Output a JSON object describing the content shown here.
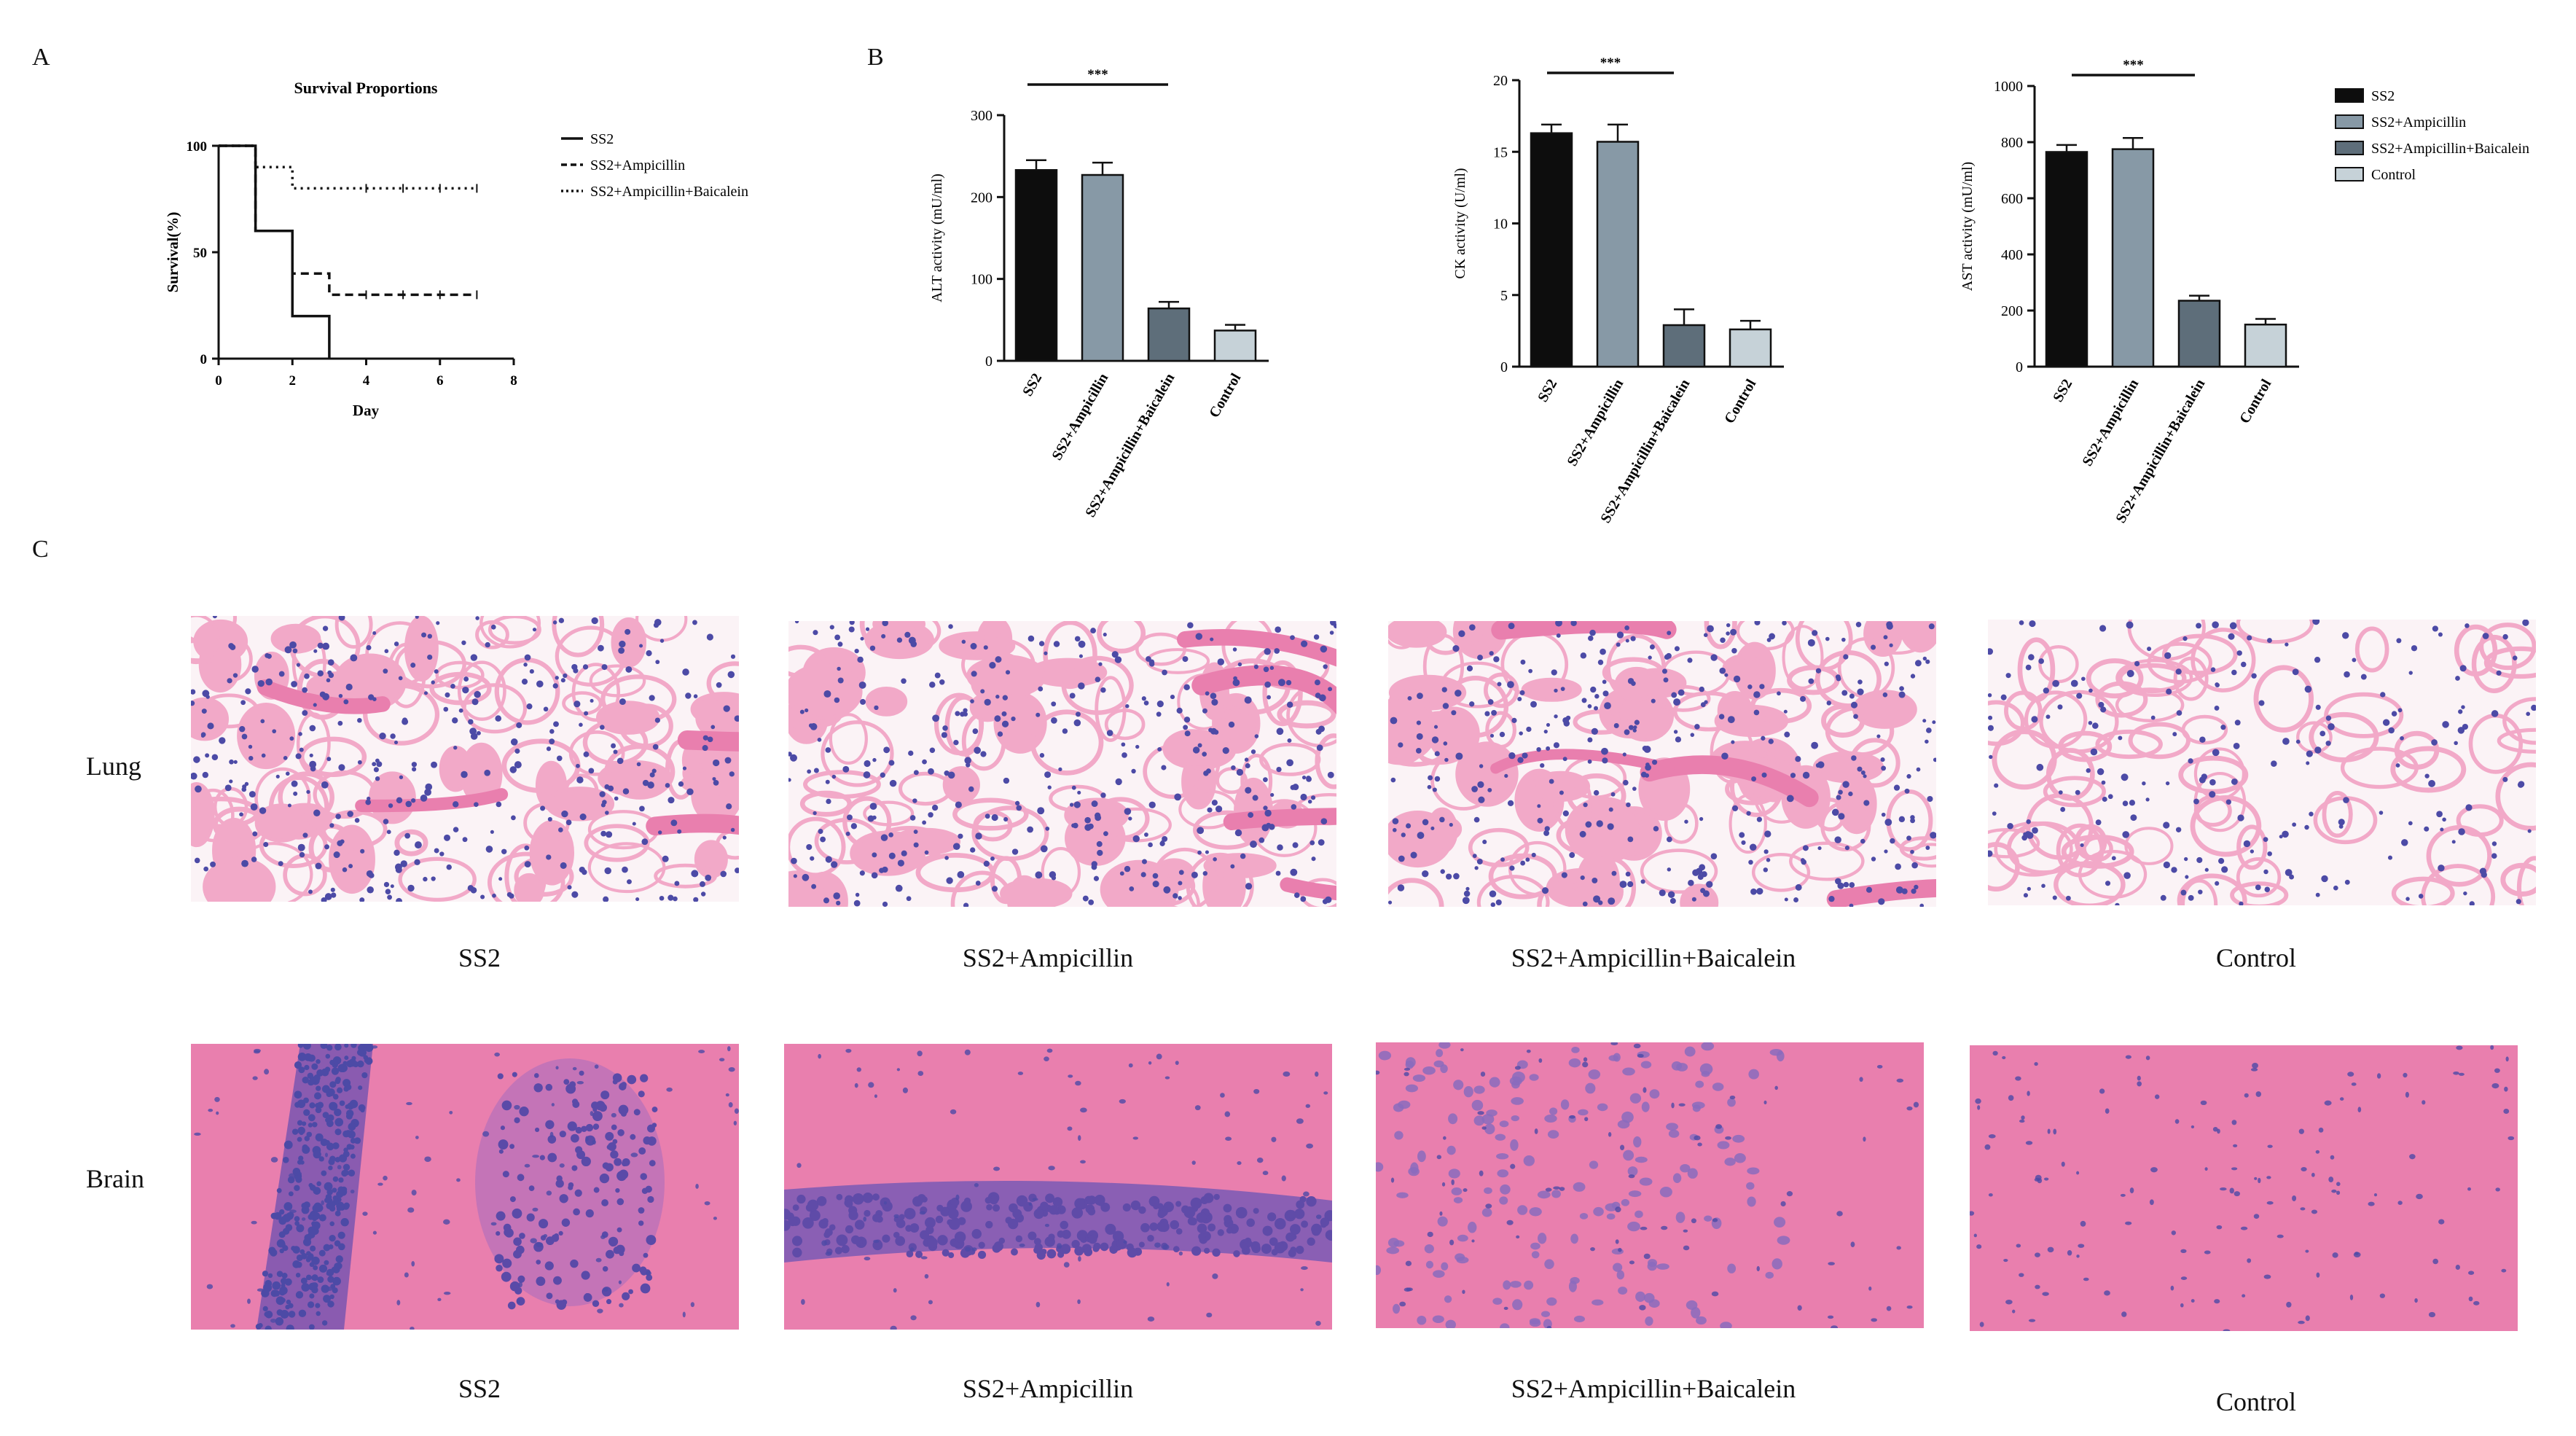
{
  "panels": {
    "a": "A",
    "b": "B",
    "c": "C"
  },
  "chart_data": [
    {
      "type": "line",
      "subtype": "step",
      "title": "Survival Proportions",
      "xlabel": "Day",
      "ylabel": "Survival(%)",
      "xlim": [
        0,
        8
      ],
      "ylim": [
        0,
        100
      ],
      "xticks": [
        "0",
        "2",
        "4",
        "6",
        "8"
      ],
      "yticks": [
        "0",
        "50",
        "100"
      ],
      "legend_position": "right",
      "series": [
        {
          "name": "SS2",
          "style": "solid",
          "x": [
            0,
            1,
            1,
            2,
            2,
            3,
            3
          ],
          "y": [
            100,
            100,
            60,
            60,
            20,
            20,
            0
          ]
        },
        {
          "name": "SS2+Ampicillin",
          "style": "dashed",
          "x": [
            0,
            1,
            1,
            2,
            2,
            3,
            3,
            7
          ],
          "y": [
            100,
            100,
            60,
            60,
            40,
            40,
            30,
            30
          ]
        },
        {
          "name": "SS2+Ampicillin+Baicalein",
          "style": "dotted",
          "x": [
            0,
            1,
            1,
            2,
            2,
            7
          ],
          "y": [
            100,
            100,
            90,
            90,
            80,
            80
          ]
        }
      ]
    },
    {
      "type": "bar",
      "ylabel": "ALT activity (mU/ml)",
      "categories": [
        "SS2",
        "SS2+Ampicillin",
        "SS2+Ampicillin+Baicalein",
        "Control"
      ],
      "values": [
        233,
        227,
        64,
        37
      ],
      "errors": [
        12,
        15,
        8,
        7
      ],
      "ylim": [
        0,
        300
      ],
      "yticks": [
        "0",
        "100",
        "200",
        "300"
      ],
      "significance": "***"
    },
    {
      "type": "bar",
      "ylabel": "CK activity (U/ml)",
      "categories": [
        "SS2",
        "SS2+Ampicillin",
        "SS2+Ampicillin+Baicalein",
        "Control"
      ],
      "values": [
        16.3,
        15.7,
        2.9,
        2.6
      ],
      "errors": [
        0.6,
        1.2,
        1.1,
        0.6
      ],
      "ylim": [
        0,
        20
      ],
      "yticks": [
        "0",
        "5",
        "10",
        "15",
        "20"
      ],
      "significance": "***"
    },
    {
      "type": "bar",
      "ylabel": "AST activity (mU/ml)",
      "categories": [
        "SS2",
        "SS2+Ampicillin",
        "SS2+Ampicillin+Baicalein",
        "Control"
      ],
      "values": [
        765,
        775,
        235,
        150
      ],
      "errors": [
        25,
        40,
        18,
        20
      ],
      "ylim": [
        0,
        1000
      ],
      "yticks": [
        "0",
        "200",
        "400",
        "600",
        "800",
        "1000"
      ],
      "significance": "***"
    }
  ],
  "bar_legend": [
    {
      "label": "SS2",
      "color": "#0d0d0d"
    },
    {
      "label": "SS2+Ampicillin",
      "color": "#8799a6"
    },
    {
      "label": "SS2+Ampicillin+Baicalein",
      "color": "#5e6e7a"
    },
    {
      "label": "Control",
      "color": "#c6d2d8"
    }
  ],
  "histology": {
    "row_labels": {
      "lung": "Lung",
      "brain": "Brain"
    },
    "lung_captions": [
      "SS2",
      "SS2+Ampicillin",
      "SS2+Ampicillin+Baicalein",
      "Control"
    ],
    "brain_captions": [
      "SS2",
      "SS2+Ampicillin",
      "SS2+Ampicillin+Baicalein",
      "Control"
    ],
    "colors": {
      "background": "#e97fae",
      "cytoplasm": "#f2a9c8",
      "nucleus": "#4c4aa6",
      "white": "#fbf3f6"
    }
  }
}
